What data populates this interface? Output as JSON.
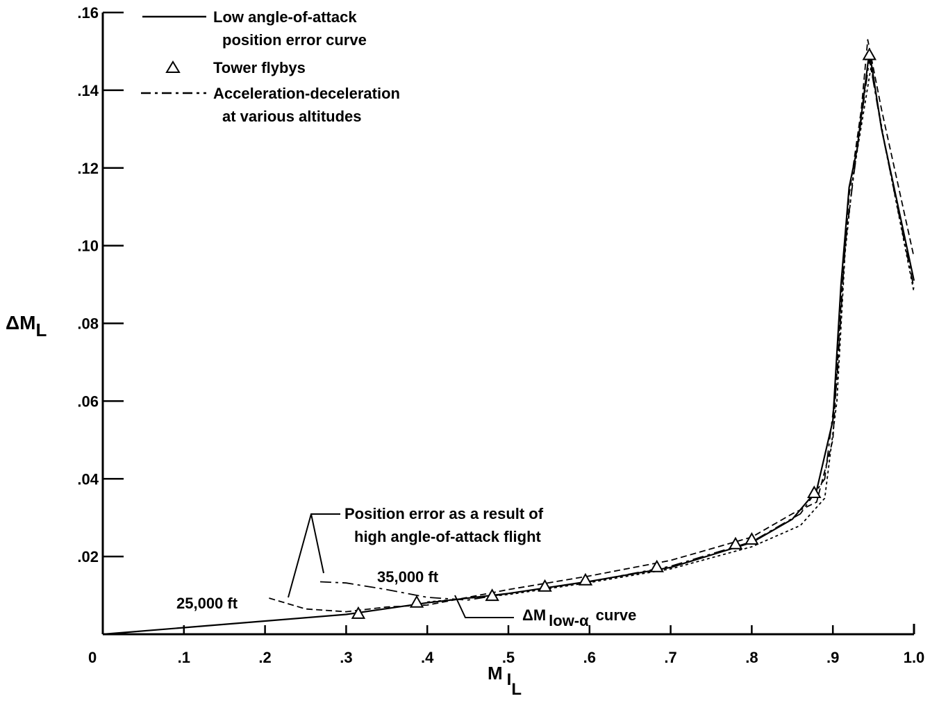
{
  "chart_data": {
    "type": "line",
    "title": "",
    "xlabel": "M",
    "xlabel_sub": "I",
    "xlabel_subsub": "L",
    "ylabel": "ΔM",
    "ylabel_sub": "L",
    "xlim": [
      0,
      1.0
    ],
    "ylim": [
      0,
      0.16
    ],
    "x_ticks": [
      {
        "value": 0,
        "label": "0"
      },
      {
        "value": 0.1,
        "label": ".1"
      },
      {
        "value": 0.2,
        "label": ".2"
      },
      {
        "value": 0.3,
        "label": ".3"
      },
      {
        "value": 0.4,
        "label": ".4"
      },
      {
        "value": 0.5,
        "label": ".5"
      },
      {
        "value": 0.6,
        "label": ".6"
      },
      {
        "value": 0.7,
        "label": ".7"
      },
      {
        "value": 0.8,
        "label": ".8"
      },
      {
        "value": 0.9,
        "label": ".9"
      },
      {
        "value": 1.0,
        "label": "1.0"
      }
    ],
    "y_ticks": [
      {
        "value": 0.02,
        "label": ".02"
      },
      {
        "value": 0.04,
        "label": ".04"
      },
      {
        "value": 0.06,
        "label": ".06"
      },
      {
        "value": 0.08,
        "label": ".08"
      },
      {
        "value": 0.1,
        "label": ".10"
      },
      {
        "value": 0.12,
        "label": ".12"
      },
      {
        "value": 0.14,
        "label": ".14"
      },
      {
        "value": 0.16,
        "label": ".16"
      }
    ],
    "grid": false,
    "legend_position": "top-left",
    "legend": [
      {
        "style": "solid",
        "label_lines": [
          "Low angle-of-attack",
          "position error curve"
        ]
      },
      {
        "style": "triangle",
        "label_lines": [
          "Tower flybys"
        ]
      },
      {
        "style": "dashdot",
        "label_lines": [
          "Acceleration-deceleration",
          "at various altitudes"
        ]
      }
    ],
    "series": [
      {
        "name": "Low angle-of-attack position error curve",
        "style": "solid",
        "points": [
          [
            0,
            0
          ],
          [
            0.1,
            0.0017
          ],
          [
            0.2,
            0.0034
          ],
          [
            0.3,
            0.0051
          ],
          [
            0.4,
            0.0081
          ],
          [
            0.5,
            0.0105
          ],
          [
            0.6,
            0.0136
          ],
          [
            0.7,
            0.0172
          ],
          [
            0.8,
            0.0236
          ],
          [
            0.85,
            0.0296
          ],
          [
            0.88,
            0.037
          ],
          [
            0.9,
            0.055
          ],
          [
            0.91,
            0.09
          ],
          [
            0.92,
            0.115
          ],
          [
            0.93,
            0.125
          ],
          [
            0.945,
            0.15
          ],
          [
            0.96,
            0.13
          ],
          [
            1.0,
            0.091
          ]
        ]
      },
      {
        "name": "Tower flybys",
        "style": "triangle",
        "points": [
          [
            0.315,
            0.0052
          ],
          [
            0.387,
            0.0081
          ],
          [
            0.48,
            0.0098
          ],
          [
            0.545,
            0.0122
          ],
          [
            0.595,
            0.0138
          ],
          [
            0.683,
            0.0172
          ],
          [
            0.78,
            0.0231
          ],
          [
            0.8,
            0.0243
          ],
          [
            0.877,
            0.0363
          ],
          [
            0.945,
            0.149
          ]
        ]
      },
      {
        "name": "Acceleration-deceleration (short dash)",
        "style": "dash",
        "points": [
          [
            0.205,
            0.0093
          ],
          [
            0.25,
            0.0065
          ],
          [
            0.3,
            0.0058
          ],
          [
            0.35,
            0.007
          ],
          [
            0.4,
            0.0075
          ],
          [
            0.45,
            0.0095
          ],
          [
            0.5,
            0.0115
          ],
          [
            0.6,
            0.015
          ],
          [
            0.7,
            0.019
          ],
          [
            0.8,
            0.025
          ],
          [
            0.85,
            0.031
          ],
          [
            0.88,
            0.034
          ],
          [
            0.9,
            0.05
          ],
          [
            0.91,
            0.085
          ],
          [
            0.92,
            0.113
          ],
          [
            0.935,
            0.135
          ],
          [
            0.943,
            0.153
          ],
          [
            0.96,
            0.135
          ],
          [
            1.0,
            0.097
          ]
        ]
      },
      {
        "name": "Acceleration-deceleration (long dash-dot)",
        "style": "dashdot",
        "points": [
          [
            0.268,
            0.0135
          ],
          [
            0.3,
            0.0132
          ],
          [
            0.35,
            0.0115
          ],
          [
            0.4,
            0.0095
          ],
          [
            0.45,
            0.0088
          ],
          [
            0.5,
            0.0105
          ],
          [
            0.6,
            0.0135
          ],
          [
            0.7,
            0.0175
          ],
          [
            0.8,
            0.0238
          ],
          [
            0.86,
            0.031
          ],
          [
            0.89,
            0.04
          ],
          [
            0.905,
            0.065
          ],
          [
            0.915,
            0.1
          ],
          [
            0.925,
            0.117
          ],
          [
            0.945,
            0.148
          ],
          [
            0.96,
            0.13
          ],
          [
            1.0,
            0.089
          ]
        ]
      },
      {
        "name": "Acceleration-deceleration (fine dash)",
        "style": "dot",
        "points": [
          [
            0.4,
            0.0083
          ],
          [
            0.5,
            0.0102
          ],
          [
            0.6,
            0.0133
          ],
          [
            0.7,
            0.0168
          ],
          [
            0.8,
            0.0225
          ],
          [
            0.86,
            0.028
          ],
          [
            0.89,
            0.035
          ],
          [
            0.905,
            0.06
          ],
          [
            0.915,
            0.098
          ],
          [
            0.925,
            0.118
          ],
          [
            0.947,
            0.146
          ],
          [
            0.965,
            0.125
          ],
          [
            1.0,
            0.088
          ]
        ]
      }
    ],
    "annotations": [
      {
        "text_lines": [
          "Position error as a result of",
          "high angle-of-attack flight"
        ],
        "x": 0.4,
        "y": 0.0325
      },
      {
        "text": "35,000 ft",
        "x": 0.34,
        "y": 0.0125
      },
      {
        "text": "25,000 ft",
        "x": 0.093,
        "y": 0.0065
      },
      {
        "text": "ΔM",
        "sub": "low-α",
        "suffix": "curve",
        "x": 0.52,
        "y": 0.0045
      }
    ]
  }
}
